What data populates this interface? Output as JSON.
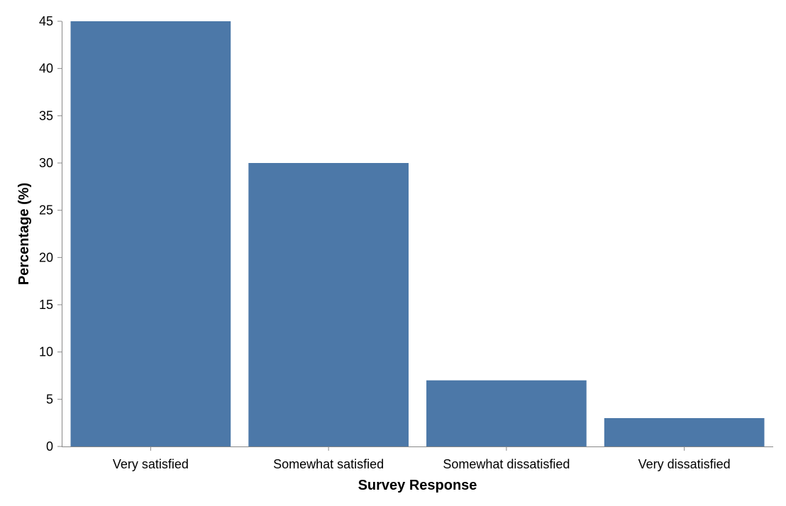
{
  "chart_data": {
    "type": "bar",
    "categories": [
      "Very satisfied",
      "Somewhat satisfied",
      "Somewhat dissatisfied",
      "Very dissatisfied"
    ],
    "values": [
      45,
      30,
      7,
      3
    ],
    "xlabel": "Survey Response",
    "ylabel": "Percentage (%)",
    "ylim": [
      0,
      45
    ],
    "yticks": [
      0,
      5,
      10,
      15,
      20,
      25,
      30,
      35,
      40,
      45
    ],
    "grid": false,
    "colors": {
      "bar": "#4c78a8",
      "axis": "#888888"
    }
  }
}
